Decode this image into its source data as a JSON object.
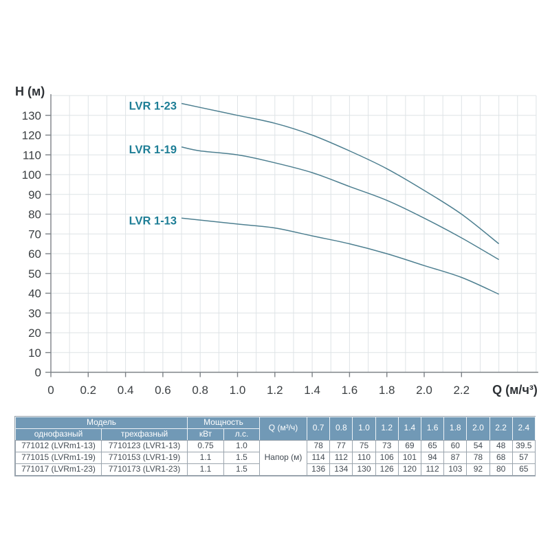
{
  "chart": {
    "y_axis_title": "H (м)",
    "x_axis_title": "Q (м/ч³)",
    "colors": {
      "curve": "#4d7f90",
      "curve_label": "#1e7e96",
      "grid": "#dee3e6",
      "axis": "#7c8186",
      "tick_text": "#3b3f42",
      "axis_title_text": "#2e3236"
    }
  },
  "chart_data": {
    "type": "line",
    "title": "",
    "xlabel": "Q (м/ч³)",
    "ylabel": "H (м)",
    "x": [
      0.7,
      0.8,
      1.0,
      1.2,
      1.4,
      1.6,
      1.8,
      2.0,
      2.2,
      2.4
    ],
    "series": [
      {
        "name": "LVR 1-23",
        "values": [
          136,
          134,
          130,
          126,
          120,
          112,
          103,
          92,
          80,
          65
        ]
      },
      {
        "name": "LVR 1-19",
        "values": [
          114,
          112,
          110,
          106,
          101,
          94,
          87,
          78,
          68,
          57
        ]
      },
      {
        "name": "LVR 1-13",
        "values": [
          78,
          77,
          75,
          73,
          69,
          65,
          60,
          54,
          48,
          39.5
        ]
      }
    ],
    "xlim": [
      0,
      2.6
    ],
    "ylim": [
      0,
      140
    ],
    "x_tick_step": 0.2,
    "x_tick_max": 2.2,
    "y_tick_step": 10,
    "y_tick_max": 130,
    "x_grid_step": 0.1,
    "y_grid_step": 10,
    "grid": true,
    "legend_position": "inline-labels-left-of-curve-start"
  },
  "table": {
    "header": {
      "model_group": "Модель",
      "power_group": "Мощность",
      "single_phase": "однофазный",
      "three_phase": "трехфазный",
      "kw": "кВт",
      "hp": "л.с.",
      "flow": "Q (м³/ч)",
      "flow_values": [
        "0.7",
        "0.8",
        "1.0",
        "1.2",
        "1.4",
        "1.6",
        "1.8",
        "2.0",
        "2.2",
        "2.4"
      ],
      "head_label": "Напор (м)"
    },
    "rows": [
      {
        "single_phase": "771012 (LVRm1-13)",
        "three_phase": "7710123 (LVR1-13)",
        "kw": "0.75",
        "hp": "1.0",
        "head": [
          "78",
          "77",
          "75",
          "73",
          "69",
          "65",
          "60",
          "54",
          "48",
          "39.5"
        ]
      },
      {
        "single_phase": "771015 (LVRm1-19)",
        "three_phase": "7710153 (LVR1-19)",
        "kw": "1.1",
        "hp": "1.5",
        "head": [
          "114",
          "112",
          "110",
          "106",
          "101",
          "94",
          "87",
          "78",
          "68",
          "57"
        ]
      },
      {
        "single_phase": "771017 (LVRm1-23)",
        "three_phase": "7710173 (LVR1-23)",
        "kw": "1.1",
        "hp": "1.5",
        "head": [
          "136",
          "134",
          "130",
          "126",
          "120",
          "112",
          "103",
          "92",
          "80",
          "65"
        ]
      }
    ],
    "colors": {
      "header_bg": "#7199b6",
      "header_text": "#ffffff",
      "body_text": "#424a52",
      "border": "#97a2ac",
      "header_divider": "#ffffff"
    }
  }
}
